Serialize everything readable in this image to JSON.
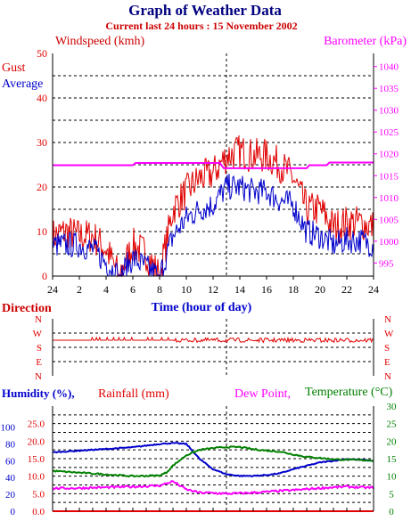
{
  "title": "Graph of Weather Data",
  "subtitle": "Current last 24 hours : 15 November 2002",
  "colors": {
    "title": "#000080",
    "subtitle": "#cc0000",
    "gust": "#e00000",
    "average": "#0000cc",
    "barometer": "#ff00ff",
    "humidity": "#0000cc",
    "rainfall": "#e00000",
    "dewpoint": "#ff00ff",
    "temperature": "#008000",
    "axis": "#000000",
    "grid": "#000000",
    "now_marker": "#000000"
  },
  "labels": {
    "windspeed": "Windspeed (kmh)",
    "barometer": "Barometer (kPa)",
    "gust": "Gust",
    "average": "Average",
    "time_axis": "Time (hour of day)",
    "direction": "Direction",
    "humidity": "Humidity (%),",
    "rainfall": "Rainfall (mm)",
    "dewpoint": "Dew Point,",
    "temperature": "Temperature (°C)"
  },
  "chart_data": [
    {
      "type": "line",
      "panel": "wind",
      "x_ticks": [
        "24",
        "2",
        "4",
        "6",
        "8",
        "10",
        "12",
        "14",
        "16",
        "18",
        "20",
        "22",
        "24"
      ],
      "xlabel": "Time (hour of day)",
      "ylabel": "Windspeed (kmh)",
      "ylim": [
        0,
        50
      ],
      "y_ticks": [
        "0",
        "10",
        "20",
        "30",
        "40",
        "50"
      ],
      "y2label": "Barometer (kPa)",
      "y2lim": [
        992,
        1043
      ],
      "y2_ticks": [
        "995",
        "1000",
        "1005",
        "1010",
        "1015",
        "1020",
        "1025",
        "1030",
        "1035",
        "1040"
      ],
      "now_hour": 13,
      "series": [
        {
          "name": "Gust",
          "hours": [
            0,
            1,
            2,
            3,
            4,
            5,
            6,
            7,
            8,
            9,
            10,
            11,
            12,
            13,
            14,
            15,
            16,
            17,
            18,
            19,
            20,
            21,
            22,
            23,
            24
          ],
          "values": [
            9,
            10,
            9,
            9,
            6,
            0,
            7,
            5,
            0,
            15,
            19,
            22,
            23,
            27,
            28,
            27,
            27,
            25,
            22,
            15,
            15,
            11,
            12,
            12,
            11
          ]
        },
        {
          "name": "Average",
          "hours": [
            0,
            1,
            2,
            3,
            4,
            5,
            6,
            7,
            8,
            9,
            10,
            11,
            12,
            13,
            14,
            15,
            16,
            17,
            18,
            19,
            20,
            21,
            22,
            23,
            24
          ],
          "values": [
            7,
            7,
            7,
            6,
            3,
            0,
            4,
            2,
            0,
            9,
            13,
            15,
            16,
            20,
            20,
            19,
            19,
            17,
            16,
            10,
            9,
            7,
            8,
            8,
            7
          ]
        },
        {
          "name": "Barometer",
          "hours": [
            0,
            6,
            6.2,
            9,
            12.5,
            12.8,
            19,
            19.2,
            20.5,
            20.7,
            24
          ],
          "values": [
            1017.4,
            1017.4,
            1017.9,
            1017.9,
            1017.9,
            1016.7,
            1016.7,
            1017.4,
            1017.4,
            1018.0,
            1018.0
          ]
        }
      ]
    },
    {
      "type": "line",
      "panel": "direction",
      "ylabel": "Direction",
      "y_ticks": [
        "N",
        "W",
        "S",
        "E",
        "N"
      ],
      "series": [
        {
          "name": "Direction",
          "hours": [
            0,
            6,
            9,
            13,
            16,
            20,
            24
          ],
          "values": [
            "W",
            "W",
            "W",
            "W",
            "W",
            "W",
            "W"
          ]
        }
      ]
    },
    {
      "type": "line",
      "panel": "humidity_temp",
      "y_ticks_humidity": [
        "0",
        "20",
        "40",
        "60",
        "80",
        "100"
      ],
      "y_ticks_rainfall": [
        "0.0",
        "5.0",
        "10.0",
        "15.0",
        "20.0",
        "25.0"
      ],
      "ylim_humidity": [
        0,
        125
      ],
      "ylim_rainfall": [
        0,
        30
      ],
      "y2_ticks": [
        "0",
        "5",
        "10",
        "15",
        "20",
        "25",
        "30"
      ],
      "y2lim": [
        0,
        30
      ],
      "series": [
        {
          "name": "Humidity",
          "hours": [
            0,
            2,
            4,
            6,
            8,
            9,
            10,
            11,
            12,
            13,
            14,
            15,
            16,
            17,
            18,
            19,
            20,
            21,
            22,
            23,
            24
          ],
          "values": [
            70,
            72,
            74,
            76,
            80,
            81,
            80,
            62,
            50,
            44,
            42,
            42,
            43,
            45,
            50,
            54,
            58,
            60,
            62,
            61,
            60
          ]
        },
        {
          "name": "Rainfall",
          "hours": [
            0,
            24
          ],
          "values": [
            0.0,
            0.0
          ]
        },
        {
          "name": "Dew Point",
          "hours": [
            0,
            2,
            4,
            6,
            8,
            9,
            10,
            11,
            12,
            13,
            14,
            15,
            16,
            17,
            18,
            19,
            20,
            21,
            22,
            23,
            24
          ],
          "values": [
            6.5,
            6.6,
            6.8,
            7.0,
            7.3,
            8.5,
            6.2,
            5.3,
            5.2,
            5.0,
            5.1,
            5.3,
            5.5,
            5.8,
            6.0,
            6.3,
            6.6,
            6.8,
            7.0,
            6.8,
            6.7
          ]
        },
        {
          "name": "Temperature",
          "hours": [
            0,
            2,
            4,
            6,
            8,
            8.5,
            9,
            10,
            11,
            12,
            13,
            14,
            15,
            16,
            17,
            18,
            19,
            20,
            21,
            22,
            23,
            24
          ],
          "values": [
            11.5,
            11,
            10.5,
            10,
            10.2,
            11,
            13,
            16,
            17.5,
            18,
            18.3,
            18.3,
            17.7,
            17.3,
            17,
            16.2,
            15.5,
            15.2,
            14.8,
            14.7,
            14.6,
            14.5
          ]
        }
      ]
    }
  ]
}
